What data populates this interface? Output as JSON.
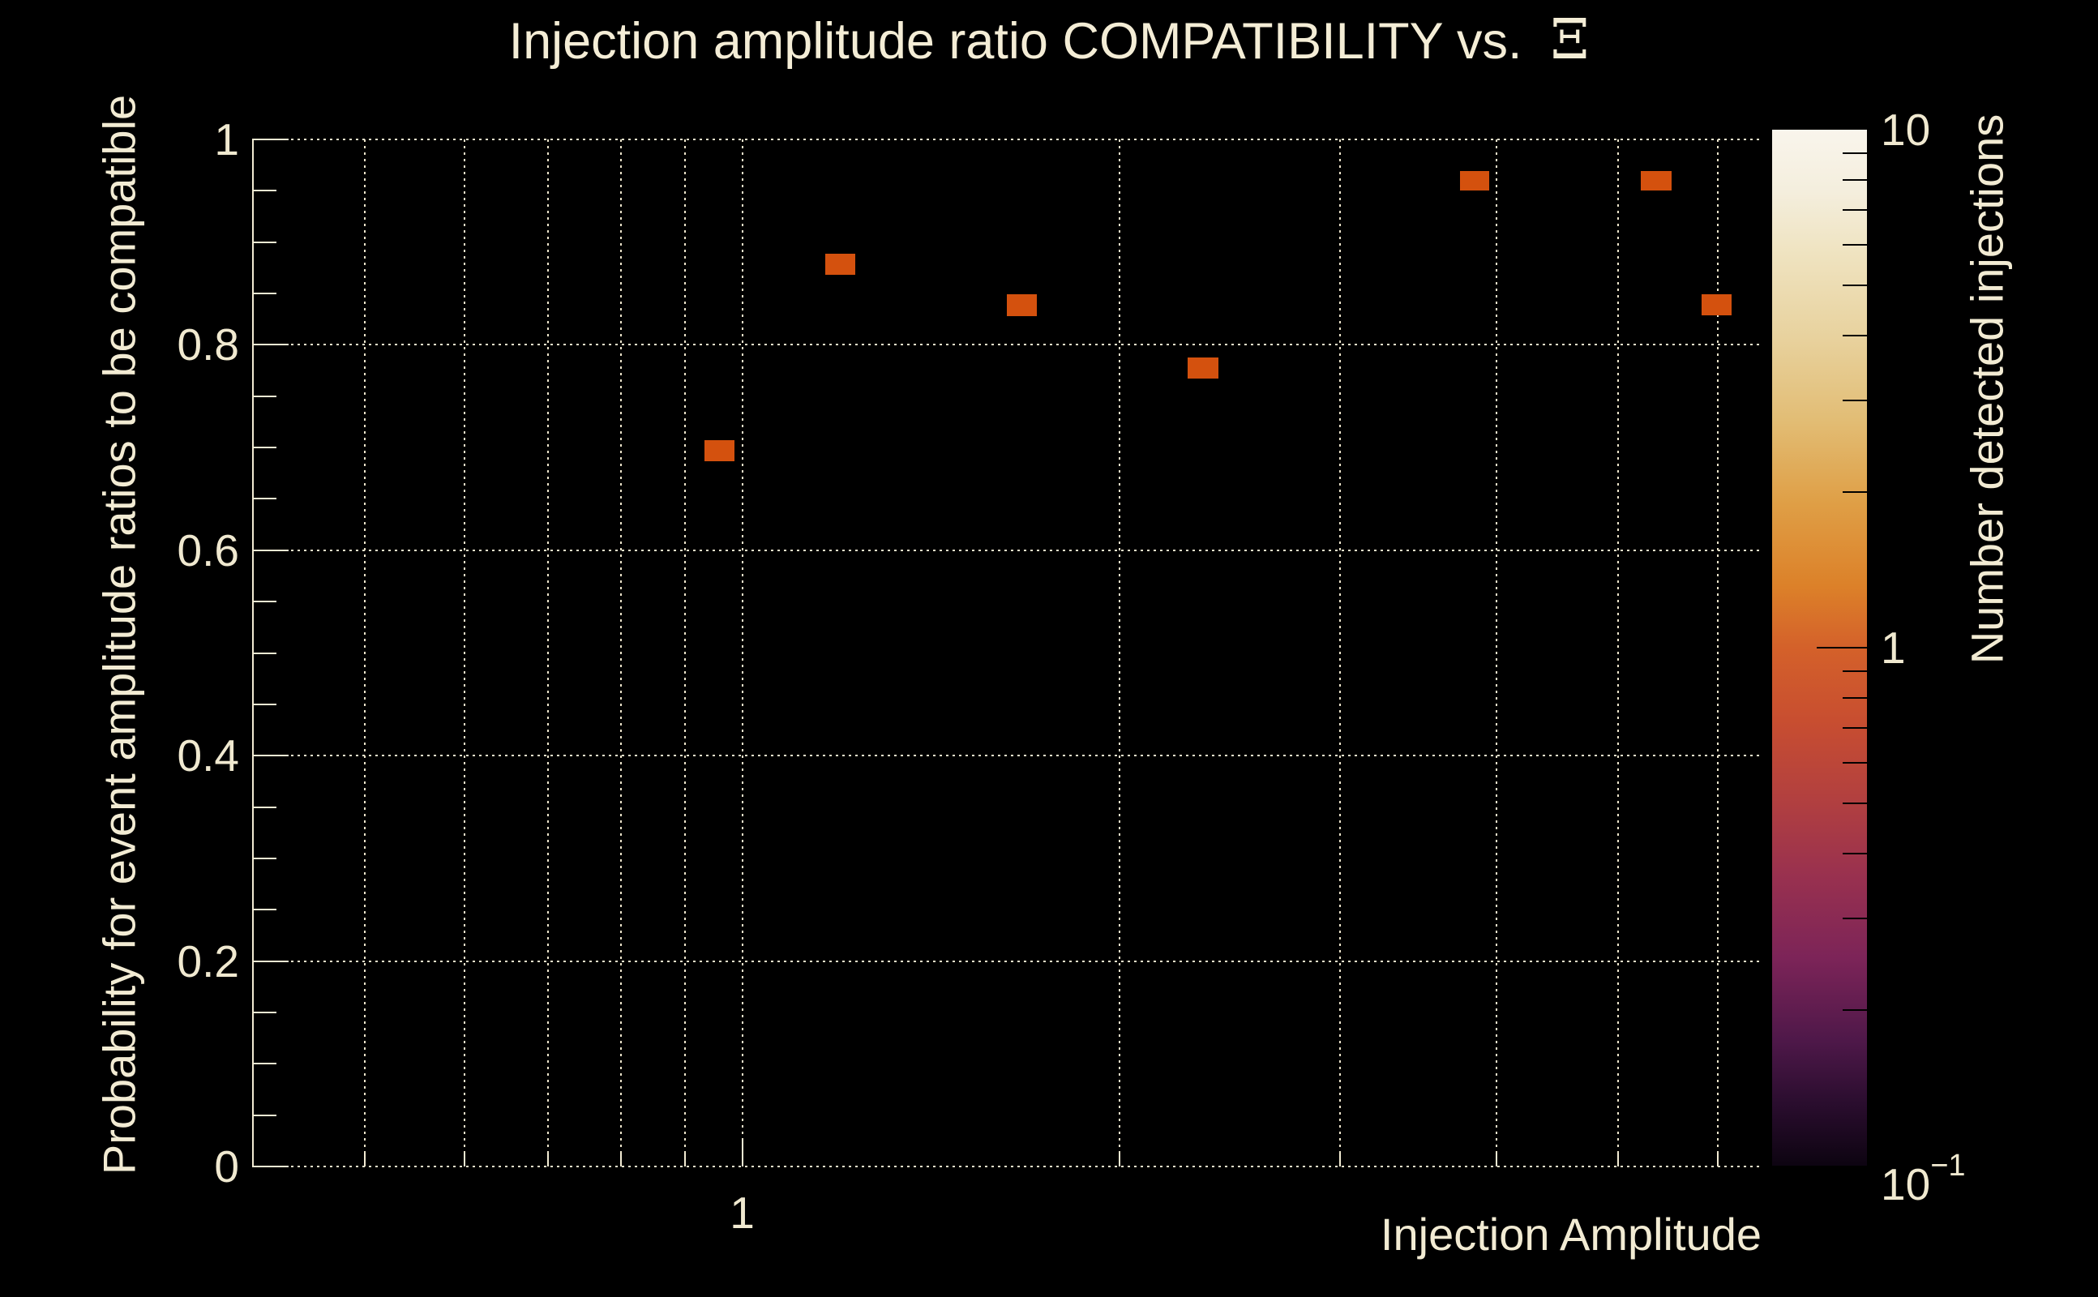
{
  "title": {
    "text": "Injection amplitude ratio COMPATIBILITY vs.  ",
    "symbol": "Ξ"
  },
  "colors": {
    "background": "#000000",
    "text": "#f2ebd3",
    "grid": "#ece4cb",
    "axis": "#f2ebd3",
    "bin_fill": "#d4510e"
  },
  "chart_data": {
    "type": "heatmap",
    "title": "Injection amplitude ratio COMPATIBILITY vs. Ξ",
    "x_axis": {
      "label": "Injection Amplitude",
      "scale": "log",
      "min": 0.4065,
      "max": 6.51,
      "gridlines": [
        0.5,
        0.6,
        0.7,
        0.8,
        0.9,
        1,
        2,
        3,
        4,
        5,
        6
      ],
      "labeled_ticks": [
        {
          "value": 1,
          "label": "1"
        }
      ]
    },
    "y_axis": {
      "label": "Probability for event amplitude ratios to be compatible",
      "scale": "linear",
      "min": 0,
      "max": 1,
      "major_ticks": [
        0,
        0.2,
        0.4,
        0.6,
        0.8,
        1
      ],
      "major_tick_labels": [
        "0",
        "0.2",
        "0.4",
        "0.6",
        "0.8",
        "1"
      ],
      "minor_tick_step": 0.05,
      "grid": "dotted"
    },
    "bins": [
      {
        "x_min": 0.933,
        "x_max": 0.986,
        "y_min": 0.687,
        "y_max": 0.707,
        "count": 1
      },
      {
        "x_min": 1.165,
        "x_max": 1.231,
        "y_min": 0.868,
        "y_max": 0.889,
        "count": 1
      },
      {
        "x_min": 1.625,
        "x_max": 1.718,
        "y_min": 0.828,
        "y_max": 0.849,
        "count": 1
      },
      {
        "x_min": 2.268,
        "x_max": 2.4,
        "y_min": 0.767,
        "y_max": 0.788,
        "count": 1
      },
      {
        "x_min": 3.737,
        "x_max": 3.946,
        "y_min": 0.95,
        "y_max": 0.969,
        "count": 1
      },
      {
        "x_min": 5.208,
        "x_max": 5.513,
        "y_min": 0.95,
        "y_max": 0.969,
        "count": 1
      },
      {
        "x_min": 5.823,
        "x_max": 6.154,
        "y_min": 0.829,
        "y_max": 0.849,
        "count": 1
      }
    ],
    "bin_color": "#d4510e",
    "colorbar": {
      "label": "Number detected injections",
      "scale": "log",
      "min": 0.1,
      "max": 10,
      "tick_labels": [
        {
          "value": 10,
          "label": "10",
          "sup": ""
        },
        {
          "value": 1,
          "label": "1",
          "sup": ""
        },
        {
          "value": 0.1,
          "label": "10",
          "sup": "−1"
        }
      ],
      "minor_ticks": [
        0.2,
        0.3,
        0.4,
        0.5,
        0.6,
        0.7,
        0.8,
        0.9,
        2,
        3,
        4,
        5,
        6,
        7,
        8,
        9
      ],
      "major_ticks": [
        1
      ],
      "gradient": [
        {
          "pos": 0.0,
          "color": "#f9f5ec"
        },
        {
          "pos": 0.06,
          "color": "#f4eedd"
        },
        {
          "pos": 0.12,
          "color": "#efe3c0"
        },
        {
          "pos": 0.2,
          "color": "#e8d29e"
        },
        {
          "pos": 0.28,
          "color": "#e2bd75"
        },
        {
          "pos": 0.36,
          "color": "#df9f46"
        },
        {
          "pos": 0.44,
          "color": "#dc8129"
        },
        {
          "pos": 0.5,
          "color": "#d4612a"
        },
        {
          "pos": 0.57,
          "color": "#c84e30"
        },
        {
          "pos": 0.64,
          "color": "#b4413e"
        },
        {
          "pos": 0.72,
          "color": "#99314f"
        },
        {
          "pos": 0.8,
          "color": "#7c2458"
        },
        {
          "pos": 0.88,
          "color": "#4e1849"
        },
        {
          "pos": 0.94,
          "color": "#2a0d2e"
        },
        {
          "pos": 1.0,
          "color": "#0d0411"
        }
      ]
    }
  }
}
